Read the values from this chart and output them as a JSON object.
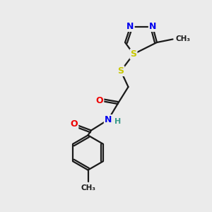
{
  "background_color": "#ebebeb",
  "bond_color": "#1a1a1a",
  "atom_colors": {
    "N": "#0000ee",
    "S": "#c8c800",
    "O": "#ee0000",
    "C": "#1a1a1a",
    "H": "#3a9a8a"
  },
  "bond_lw": 1.6,
  "font_size": 9
}
